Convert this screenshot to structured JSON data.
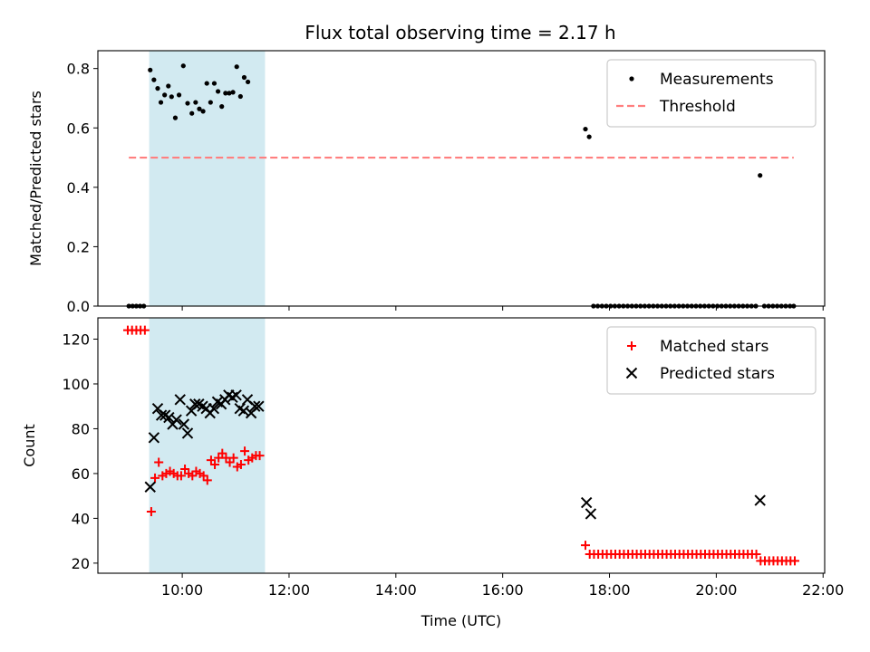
{
  "chart_data": [
    {
      "type": "scatter",
      "title": "Flux total observing time = 2.17 h",
      "ylabel": "Matched/Predicted stars",
      "xlabel": "",
      "xlim": [
        8.42,
        22.03
      ],
      "ylim": [
        0,
        0.86
      ],
      "xticks": [
        10,
        12,
        14,
        16,
        18,
        20,
        22
      ],
      "yticks": [
        0.0,
        0.2,
        0.4,
        0.6,
        0.8
      ],
      "ytick_labels": [
        "0.0",
        "0.2",
        "0.4",
        "0.6",
        "0.8"
      ],
      "grid": false,
      "legend_position": "top-right",
      "highlight_span": [
        9.38,
        11.55
      ],
      "highlight_color": "#add8e6",
      "threshold": {
        "name": "Threshold",
        "value": 0.5,
        "x_range": [
          9.0,
          21.45
        ],
        "color": "#ff7f7f"
      },
      "series": [
        {
          "name": "Measurements",
          "marker": "dot",
          "color": "#000000",
          "points": [
            [
              9.0,
              0.0
            ],
            [
              9.07,
              0.0
            ],
            [
              9.14,
              0.0
            ],
            [
              9.21,
              0.0
            ],
            [
              9.28,
              0.0
            ],
            [
              9.4,
              0.795
            ],
            [
              9.47,
              0.762
            ],
            [
              9.54,
              0.733
            ],
            [
              9.6,
              0.686
            ],
            [
              9.67,
              0.711
            ],
            [
              9.74,
              0.741
            ],
            [
              9.8,
              0.705
            ],
            [
              9.87,
              0.634
            ],
            [
              9.94,
              0.711
            ],
            [
              10.02,
              0.809
            ],
            [
              10.1,
              0.683
            ],
            [
              10.18,
              0.649
            ],
            [
              10.25,
              0.686
            ],
            [
              10.32,
              0.664
            ],
            [
              10.39,
              0.656
            ],
            [
              10.46,
              0.75
            ],
            [
              10.53,
              0.686
            ],
            [
              10.6,
              0.75
            ],
            [
              10.67,
              0.723
            ],
            [
              10.74,
              0.672
            ],
            [
              10.81,
              0.717
            ],
            [
              10.88,
              0.717
            ],
            [
              10.95,
              0.72
            ],
            [
              11.02,
              0.806
            ],
            [
              11.09,
              0.706
            ],
            [
              11.16,
              0.77
            ],
            [
              11.23,
              0.755
            ],
            [
              17.55,
              0.596
            ],
            [
              17.62,
              0.57
            ],
            [
              17.7,
              0.0
            ],
            [
              17.78,
              0.0
            ],
            [
              17.86,
              0.0
            ],
            [
              17.94,
              0.0
            ],
            [
              18.02,
              0.0
            ],
            [
              18.1,
              0.0
            ],
            [
              18.18,
              0.0
            ],
            [
              18.26,
              0.0
            ],
            [
              18.34,
              0.0
            ],
            [
              18.42,
              0.0
            ],
            [
              18.5,
              0.0
            ],
            [
              18.58,
              0.0
            ],
            [
              18.66,
              0.0
            ],
            [
              18.74,
              0.0
            ],
            [
              18.82,
              0.0
            ],
            [
              18.9,
              0.0
            ],
            [
              18.98,
              0.0
            ],
            [
              19.06,
              0.0
            ],
            [
              19.14,
              0.0
            ],
            [
              19.22,
              0.0
            ],
            [
              19.3,
              0.0
            ],
            [
              19.38,
              0.0
            ],
            [
              19.46,
              0.0
            ],
            [
              19.54,
              0.0
            ],
            [
              19.62,
              0.0
            ],
            [
              19.7,
              0.0
            ],
            [
              19.78,
              0.0
            ],
            [
              19.86,
              0.0
            ],
            [
              19.94,
              0.0
            ],
            [
              20.02,
              0.0
            ],
            [
              20.1,
              0.0
            ],
            [
              20.18,
              0.0
            ],
            [
              20.26,
              0.0
            ],
            [
              20.34,
              0.0
            ],
            [
              20.42,
              0.0
            ],
            [
              20.5,
              0.0
            ],
            [
              20.58,
              0.0
            ],
            [
              20.66,
              0.0
            ],
            [
              20.74,
              0.0
            ],
            [
              20.82,
              0.44
            ],
            [
              20.9,
              0.0
            ],
            [
              20.98,
              0.0
            ],
            [
              21.06,
              0.0
            ],
            [
              21.14,
              0.0
            ],
            [
              21.22,
              0.0
            ],
            [
              21.3,
              0.0
            ],
            [
              21.38,
              0.0
            ],
            [
              21.45,
              0.0
            ]
          ]
        }
      ]
    },
    {
      "type": "scatter",
      "title": "",
      "ylabel": "Count",
      "xlabel": "Time (UTC)",
      "xlim": [
        8.42,
        22.03
      ],
      "ylim": [
        15.5,
        129.5
      ],
      "xticks": [
        10,
        12,
        14,
        16,
        18,
        20,
        22
      ],
      "xtick_labels": [
        "10:00",
        "12:00",
        "14:00",
        "16:00",
        "18:00",
        "20:00",
        "22:00"
      ],
      "yticks": [
        20,
        40,
        60,
        80,
        100,
        120
      ],
      "ytick_labels": [
        "20",
        "40",
        "60",
        "80",
        "100",
        "120"
      ],
      "grid": false,
      "legend_position": "top-right",
      "highlight_span": [
        9.38,
        11.55
      ],
      "highlight_color": "#add8e6",
      "series": [
        {
          "name": "Matched stars",
          "marker": "plus",
          "color": "#ff0000",
          "points": [
            [
              8.98,
              124
            ],
            [
              9.06,
              124
            ],
            [
              9.14,
              124
            ],
            [
              9.22,
              124
            ],
            [
              9.3,
              124
            ],
            [
              9.42,
              43
            ],
            [
              9.49,
              58
            ],
            [
              9.56,
              65
            ],
            [
              9.63,
              59
            ],
            [
              9.7,
              60
            ],
            [
              9.77,
              61
            ],
            [
              9.84,
              60
            ],
            [
              9.91,
              59
            ],
            [
              9.98,
              59
            ],
            [
              10.05,
              62
            ],
            [
              10.12,
              60
            ],
            [
              10.19,
              59
            ],
            [
              10.26,
              61
            ],
            [
              10.33,
              60
            ],
            [
              10.4,
              59
            ],
            [
              10.47,
              57
            ],
            [
              10.54,
              66
            ],
            [
              10.61,
              64
            ],
            [
              10.68,
              67
            ],
            [
              10.75,
              69
            ],
            [
              10.82,
              67
            ],
            [
              10.89,
              65
            ],
            [
              10.96,
              67
            ],
            [
              11.03,
              63
            ],
            [
              11.1,
              64
            ],
            [
              11.17,
              70
            ],
            [
              11.24,
              66
            ],
            [
              11.31,
              67
            ],
            [
              11.38,
              68
            ],
            [
              11.45,
              68
            ],
            [
              17.55,
              28
            ],
            [
              17.63,
              24
            ],
            [
              17.71,
              24
            ],
            [
              17.79,
              24
            ],
            [
              17.87,
              24
            ],
            [
              17.95,
              24
            ],
            [
              18.03,
              24
            ],
            [
              18.11,
              24
            ],
            [
              18.19,
              24
            ],
            [
              18.27,
              24
            ],
            [
              18.35,
              24
            ],
            [
              18.43,
              24
            ],
            [
              18.51,
              24
            ],
            [
              18.59,
              24
            ],
            [
              18.67,
              24
            ],
            [
              18.75,
              24
            ],
            [
              18.83,
              24
            ],
            [
              18.91,
              24
            ],
            [
              18.99,
              24
            ],
            [
              19.07,
              24
            ],
            [
              19.15,
              24
            ],
            [
              19.23,
              24
            ],
            [
              19.31,
              24
            ],
            [
              19.39,
              24
            ],
            [
              19.47,
              24
            ],
            [
              19.55,
              24
            ],
            [
              19.63,
              24
            ],
            [
              19.71,
              24
            ],
            [
              19.79,
              24
            ],
            [
              19.87,
              24
            ],
            [
              19.95,
              24
            ],
            [
              20.03,
              24
            ],
            [
              20.11,
              24
            ],
            [
              20.19,
              24
            ],
            [
              20.27,
              24
            ],
            [
              20.35,
              24
            ],
            [
              20.43,
              24
            ],
            [
              20.51,
              24
            ],
            [
              20.59,
              24
            ],
            [
              20.67,
              24
            ],
            [
              20.75,
              24
            ],
            [
              20.83,
              21
            ],
            [
              20.91,
              21
            ],
            [
              20.99,
              21
            ],
            [
              21.07,
              21
            ],
            [
              21.15,
              21
            ],
            [
              21.23,
              21
            ],
            [
              21.31,
              21
            ],
            [
              21.39,
              21
            ],
            [
              21.47,
              21
            ]
          ]
        },
        {
          "name": "Predicted stars",
          "marker": "x",
          "color": "#000000",
          "points": [
            [
              9.4,
              54
            ],
            [
              9.47,
              76
            ],
            [
              9.54,
              89
            ],
            [
              9.61,
              86
            ],
            [
              9.68,
              86
            ],
            [
              9.75,
              85
            ],
            [
              9.82,
              82
            ],
            [
              9.89,
              84
            ],
            [
              9.96,
              93
            ],
            [
              10.03,
              82
            ],
            [
              10.1,
              78
            ],
            [
              10.17,
              88
            ],
            [
              10.24,
              91
            ],
            [
              10.31,
              91
            ],
            [
              10.38,
              90
            ],
            [
              10.45,
              89
            ],
            [
              10.52,
              87
            ],
            [
              10.59,
              89
            ],
            [
              10.66,
              92
            ],
            [
              10.73,
              91
            ],
            [
              10.8,
              93
            ],
            [
              10.87,
              95
            ],
            [
              10.94,
              94
            ],
            [
              11.01,
              95
            ],
            [
              11.08,
              89
            ],
            [
              11.15,
              88
            ],
            [
              11.22,
              93
            ],
            [
              11.29,
              87
            ],
            [
              11.36,
              90
            ],
            [
              11.43,
              90
            ],
            [
              17.57,
              47
            ],
            [
              17.65,
              42
            ],
            [
              20.82,
              48
            ]
          ]
        }
      ]
    }
  ]
}
